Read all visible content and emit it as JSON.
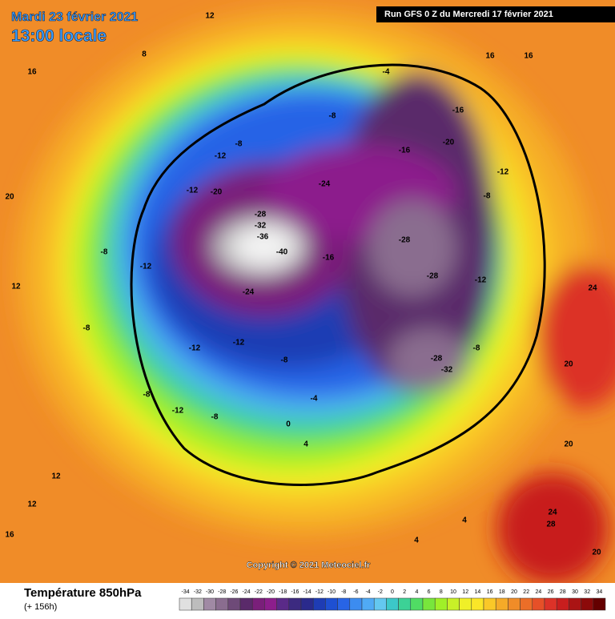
{
  "header": {
    "date": "Mardi 23 février 2021",
    "time": "13:00 locale",
    "run": "Run GFS 0 Z du Mercredi 17 février 2021",
    "copyright": "Copyright © 2021 Meteociel.fr"
  },
  "legend": {
    "title": "Température 850hPa",
    "lead": "(+ 156h)",
    "ticks": [
      -34,
      -32,
      -30,
      -28,
      -26,
      -24,
      -22,
      -20,
      -18,
      -16,
      -14,
      -12,
      -10,
      -8,
      -6,
      -4,
      -2,
      0,
      2,
      4,
      6,
      8,
      10,
      12,
      14,
      16,
      18,
      20,
      22,
      24,
      26,
      28,
      30,
      32,
      34
    ],
    "colors": [
      "#e0e0e0",
      "#bdbdbd",
      "#a08aa4",
      "#8a6d8f",
      "#6e4a78",
      "#5a2a6a",
      "#7a1f7a",
      "#8c1e8c",
      "#5a2a88",
      "#3c2a80",
      "#2a2a8c",
      "#1e3cb4",
      "#1e50d2",
      "#2864e6",
      "#3c8cf0",
      "#50aaf5",
      "#64c8f0",
      "#3cc8c8",
      "#3cd296",
      "#50dc64",
      "#78e63c",
      "#a0f028",
      "#c8f028",
      "#f0f028",
      "#fae628",
      "#fac828",
      "#f5aa28",
      "#f08c28",
      "#eb6e28",
      "#e65028",
      "#dc3228",
      "#c81e1e",
      "#aa1414",
      "#8c0a0a",
      "#640000"
    ]
  },
  "map_labels": [
    -40,
    -36,
    -32,
    -28,
    -24,
    -20,
    -24,
    -16,
    -28,
    -28,
    -28,
    -32,
    -20,
    -16,
    -16,
    -8,
    -12,
    -12,
    -8,
    -8,
    -4,
    -8,
    -12,
    -12,
    -12,
    -8,
    -8,
    -12,
    -12,
    -8,
    -12,
    -8,
    -8,
    -4,
    0,
    4,
    4,
    4,
    12,
    12,
    16,
    8,
    12,
    16,
    20,
    24,
    24,
    28,
    20,
    20,
    16,
    16,
    20,
    12
  ]
}
